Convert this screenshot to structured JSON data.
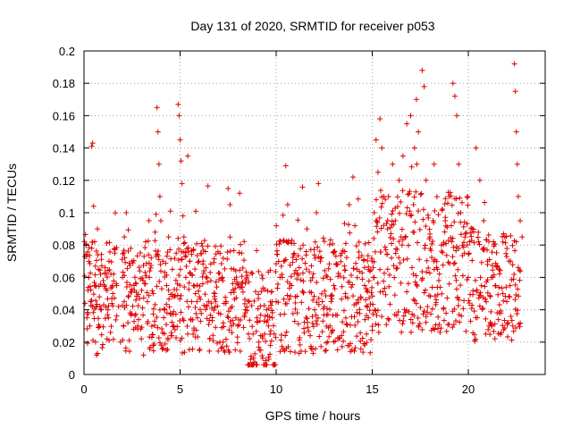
{
  "chart_data": {
    "type": "scatter",
    "title": "Day 131 of 2020, SRMTID for receiver p053",
    "xlabel": "GPS time / hours",
    "ylabel": "SRMTID / TECUs",
    "xlim": [
      0,
      24
    ],
    "ylim": [
      0,
      0.2
    ],
    "x_ticks": [
      0,
      5,
      10,
      15,
      20
    ],
    "x_tick_labels": [
      "0",
      "5",
      "10",
      "15",
      "20"
    ],
    "y_ticks": [
      0,
      0.02,
      0.04,
      0.06,
      0.08,
      0.1,
      0.12,
      0.14,
      0.16,
      0.18,
      0.2
    ],
    "y_tick_labels": [
      "0",
      "0.02",
      "0.04",
      "0.06",
      "0.08",
      "0.1",
      "0.12",
      "0.14",
      "0.16",
      "0.18",
      "0.2"
    ],
    "grid": true,
    "marker": "+",
    "color": "#e00000",
    "series": [
      {
        "name": "SRMTID",
        "points": [
          [
            0.05,
            0.044
          ],
          [
            0.1,
            0.08
          ],
          [
            0.15,
            0.035
          ],
          [
            0.2,
            0.052
          ],
          [
            0.25,
            0.06
          ],
          [
            0.3,
            0.03
          ],
          [
            0.35,
            0.045
          ],
          [
            0.4,
            0.141
          ],
          [
            0.45,
            0.143
          ],
          [
            0.5,
            0.104
          ],
          [
            0.55,
            0.055
          ],
          [
            0.6,
            0.02
          ],
          [
            0.65,
            0.012
          ],
          [
            0.7,
            0.09
          ],
          [
            0.75,
            0.065
          ],
          [
            0.8,
            0.048
          ],
          [
            0.9,
            0.04
          ],
          [
            1.0,
            0.058
          ],
          [
            1.1,
            0.066
          ],
          [
            1.2,
            0.052
          ],
          [
            1.3,
            0.07
          ],
          [
            1.4,
            0.062
          ],
          [
            1.5,
            0.05
          ],
          [
            1.6,
            0.075
          ],
          [
            1.7,
            0.055
          ],
          [
            1.8,
            0.042
          ],
          [
            1.9,
            0.02
          ],
          [
            2.0,
            0.06
          ],
          [
            2.1,
            0.085
          ],
          [
            2.2,
            0.1
          ],
          [
            2.3,
            0.048
          ],
          [
            2.4,
            0.038
          ],
          [
            2.5,
            0.07
          ],
          [
            2.6,
            0.055
          ],
          [
            2.7,
            0.046
          ],
          [
            2.8,
            0.03
          ],
          [
            2.9,
            0.064
          ],
          [
            3.0,
            0.052
          ],
          [
            3.1,
            0.012
          ],
          [
            3.2,
            0.056
          ],
          [
            3.3,
            0.045
          ],
          [
            3.4,
            0.06
          ],
          [
            3.5,
            0.072
          ],
          [
            3.6,
            0.05
          ],
          [
            3.7,
            0.088
          ],
          [
            3.75,
            0.099
          ],
          [
            3.8,
            0.165
          ],
          [
            3.85,
            0.15
          ],
          [
            3.9,
            0.13
          ],
          [
            3.95,
            0.11
          ],
          [
            4.0,
            0.095
          ],
          [
            4.1,
            0.07
          ],
          [
            4.2,
            0.04
          ],
          [
            4.3,
            0.055
          ],
          [
            4.4,
            0.085
          ],
          [
            4.5,
            0.101
          ],
          [
            4.6,
            0.065
          ],
          [
            4.7,
            0.048
          ],
          [
            4.8,
            0.075
          ],
          [
            4.9,
            0.167
          ],
          [
            4.95,
            0.16
          ],
          [
            5.0,
            0.145
          ],
          [
            5.05,
            0.132
          ],
          [
            5.1,
            0.118
          ],
          [
            5.15,
            0.098
          ],
          [
            5.2,
            0.085
          ],
          [
            5.3,
            0.06
          ],
          [
            5.4,
            0.135
          ],
          [
            5.5,
            0.07
          ],
          [
            5.6,
            0.045
          ],
          [
            5.7,
            0.055
          ],
          [
            5.8,
            0.05
          ],
          [
            5.9,
            0.035
          ],
          [
            6.0,
            0.048
          ],
          [
            6.2,
            0.07
          ],
          [
            6.4,
            0.042
          ],
          [
            6.6,
            0.058
          ],
          [
            6.8,
            0.05
          ],
          [
            7.0,
            0.038
          ],
          [
            7.2,
            0.06
          ],
          [
            7.4,
            0.045
          ],
          [
            7.5,
            0.115
          ],
          [
            7.6,
            0.105
          ],
          [
            7.8,
            0.065
          ],
          [
            8.0,
            0.03
          ],
          [
            8.1,
            0.112
          ],
          [
            8.2,
            0.075
          ],
          [
            8.4,
            0.04
          ],
          [
            8.6,
            0.045
          ],
          [
            8.8,
            0.025
          ],
          [
            9.0,
            0.035
          ],
          [
            9.1,
            0.02
          ],
          [
            9.2,
            0.015
          ],
          [
            9.3,
            0.01
          ],
          [
            9.4,
            0.025
          ],
          [
            9.5,
            0.04
          ],
          [
            9.6,
            0.03
          ],
          [
            9.7,
            0.018
          ],
          [
            9.8,
            0.035
          ],
          [
            10.0,
            0.045
          ],
          [
            10.2,
            0.06
          ],
          [
            10.4,
            0.07
          ],
          [
            10.5,
            0.129
          ],
          [
            10.6,
            0.105
          ],
          [
            10.8,
            0.055
          ],
          [
            11.0,
            0.048
          ],
          [
            11.2,
            0.066
          ],
          [
            11.4,
            0.08
          ],
          [
            11.6,
            0.09
          ],
          [
            11.8,
            0.058
          ],
          [
            12.0,
            0.04
          ],
          [
            12.1,
            0.1
          ],
          [
            12.2,
            0.118
          ],
          [
            12.3,
            0.07
          ],
          [
            12.4,
            0.045
          ],
          [
            12.6,
            0.015
          ],
          [
            12.8,
            0.03
          ],
          [
            13.0,
            0.055
          ],
          [
            13.2,
            0.068
          ],
          [
            13.4,
            0.075
          ],
          [
            13.6,
            0.05
          ],
          [
            13.8,
            0.105
          ],
          [
            14.0,
            0.122
          ],
          [
            14.1,
            0.092
          ],
          [
            14.2,
            0.065
          ],
          [
            14.4,
            0.048
          ],
          [
            14.6,
            0.055
          ],
          [
            14.7,
            0.025
          ],
          [
            14.8,
            0.035
          ],
          [
            15.0,
            0.07
          ],
          [
            15.1,
            0.1
          ],
          [
            15.2,
            0.145
          ],
          [
            15.3,
            0.125
          ],
          [
            15.4,
            0.158
          ],
          [
            15.5,
            0.14
          ],
          [
            15.6,
            0.11
          ],
          [
            15.8,
            0.09
          ],
          [
            16.0,
            0.072
          ],
          [
            16.2,
            0.095
          ],
          [
            16.4,
            0.12
          ],
          [
            16.6,
            0.135
          ],
          [
            16.8,
            0.155
          ],
          [
            17.0,
            0.16
          ],
          [
            17.2,
            0.14
          ],
          [
            17.3,
            0.17
          ],
          [
            17.4,
            0.15
          ],
          [
            17.6,
            0.188
          ],
          [
            17.7,
            0.178
          ],
          [
            17.8,
            0.12
          ],
          [
            18.0,
            0.085
          ],
          [
            18.2,
            0.07
          ],
          [
            18.4,
            0.065
          ],
          [
            18.6,
            0.08
          ],
          [
            18.8,
            0.095
          ],
          [
            19.0,
            0.11
          ],
          [
            19.2,
            0.18
          ],
          [
            19.3,
            0.172
          ],
          [
            19.4,
            0.16
          ],
          [
            19.5,
            0.13
          ],
          [
            19.6,
            0.1
          ],
          [
            19.8,
            0.075
          ],
          [
            20.0,
            0.06
          ],
          [
            20.2,
            0.09
          ],
          [
            20.4,
            0.14
          ],
          [
            20.6,
            0.12
          ],
          [
            20.8,
            0.095
          ],
          [
            21.0,
            0.07
          ],
          [
            21.2,
            0.06
          ],
          [
            21.4,
            0.055
          ],
          [
            21.6,
            0.065
          ],
          [
            21.8,
            0.05
          ],
          [
            22.0,
            0.045
          ],
          [
            22.2,
            0.07
          ],
          [
            22.4,
            0.192
          ],
          [
            22.45,
            0.175
          ],
          [
            22.5,
            0.15
          ],
          [
            22.55,
            0.13
          ],
          [
            22.6,
            0.11
          ],
          [
            22.7,
            0.095
          ],
          [
            22.8,
            0.085
          ]
        ]
      }
    ],
    "generated_noise_seed": 131
  }
}
